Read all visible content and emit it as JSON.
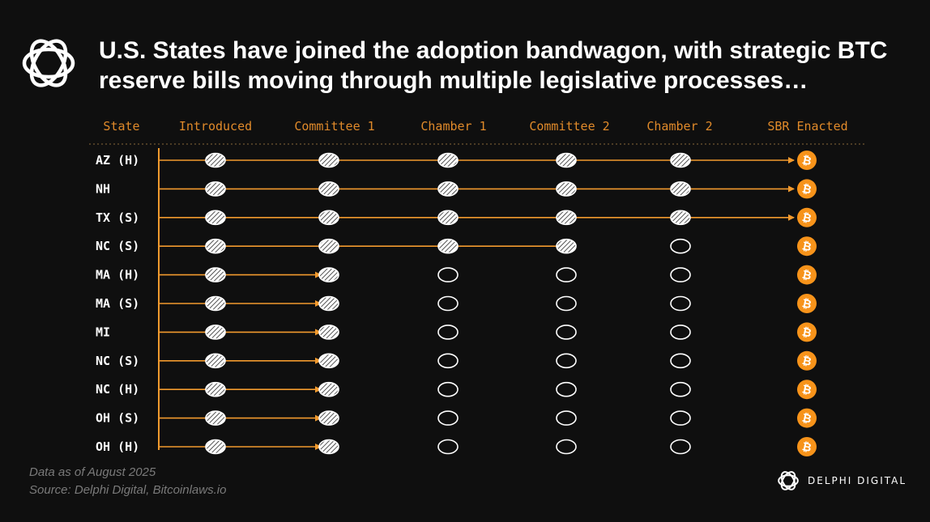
{
  "header": {
    "title": "U.S. States have joined the adoption bandwagon, with strategic BTC reserve bills moving through multiple legislative processes…",
    "logo_icon": "delphi-knot-icon"
  },
  "chart_data": {
    "type": "progress-tracker",
    "title": "U.S. States have joined the adoption bandwagon, with strategic BTC reserve bills moving through multiple legislative processes…",
    "columns": [
      "State",
      "Introduced",
      "Committee 1",
      "Chamber 1",
      "Committee 2",
      "Chamber 2",
      "SBR Enacted"
    ],
    "stages": [
      "Introduced",
      "Committee 1",
      "Chamber 1",
      "Committee 2",
      "Chamber 2",
      "SBR Enacted"
    ],
    "rows": [
      {
        "state": "AZ (H)",
        "stages_completed": 5,
        "arrow_to_enacted": true
      },
      {
        "state": "NH",
        "stages_completed": 5,
        "arrow_to_enacted": true
      },
      {
        "state": "TX (S)",
        "stages_completed": 5,
        "arrow_to_enacted": true
      },
      {
        "state": "NC (S)",
        "stages_completed": 4,
        "arrow_to_enacted": false
      },
      {
        "state": "MA (H)",
        "stages_completed": 2,
        "arrow_to_enacted": false
      },
      {
        "state": "MA (S)",
        "stages_completed": 2,
        "arrow_to_enacted": false
      },
      {
        "state": "MI",
        "stages_completed": 2,
        "arrow_to_enacted": false
      },
      {
        "state": "NC (S)",
        "stages_completed": 2,
        "arrow_to_enacted": false
      },
      {
        "state": "NC (H)",
        "stages_completed": 2,
        "arrow_to_enacted": false
      },
      {
        "state": "OH (S)",
        "stages_completed": 2,
        "arrow_to_enacted": false
      },
      {
        "state": "OH (H)",
        "stages_completed": 2,
        "arrow_to_enacted": false
      }
    ],
    "enacted_icon": "bitcoin-icon",
    "colors": {
      "accent": "#e08a2a",
      "bitcoin": "#f7931a",
      "line": "#f29a2e",
      "background": "#0f0f0f",
      "text": "#ffffff"
    }
  },
  "footer": {
    "note": "Data as of August 2025",
    "source": "Source: Delphi Digital, Bitcoinlaws.io",
    "brand_name": "DELPHI DIGITAL",
    "brand_icon": "delphi-knot-icon"
  }
}
